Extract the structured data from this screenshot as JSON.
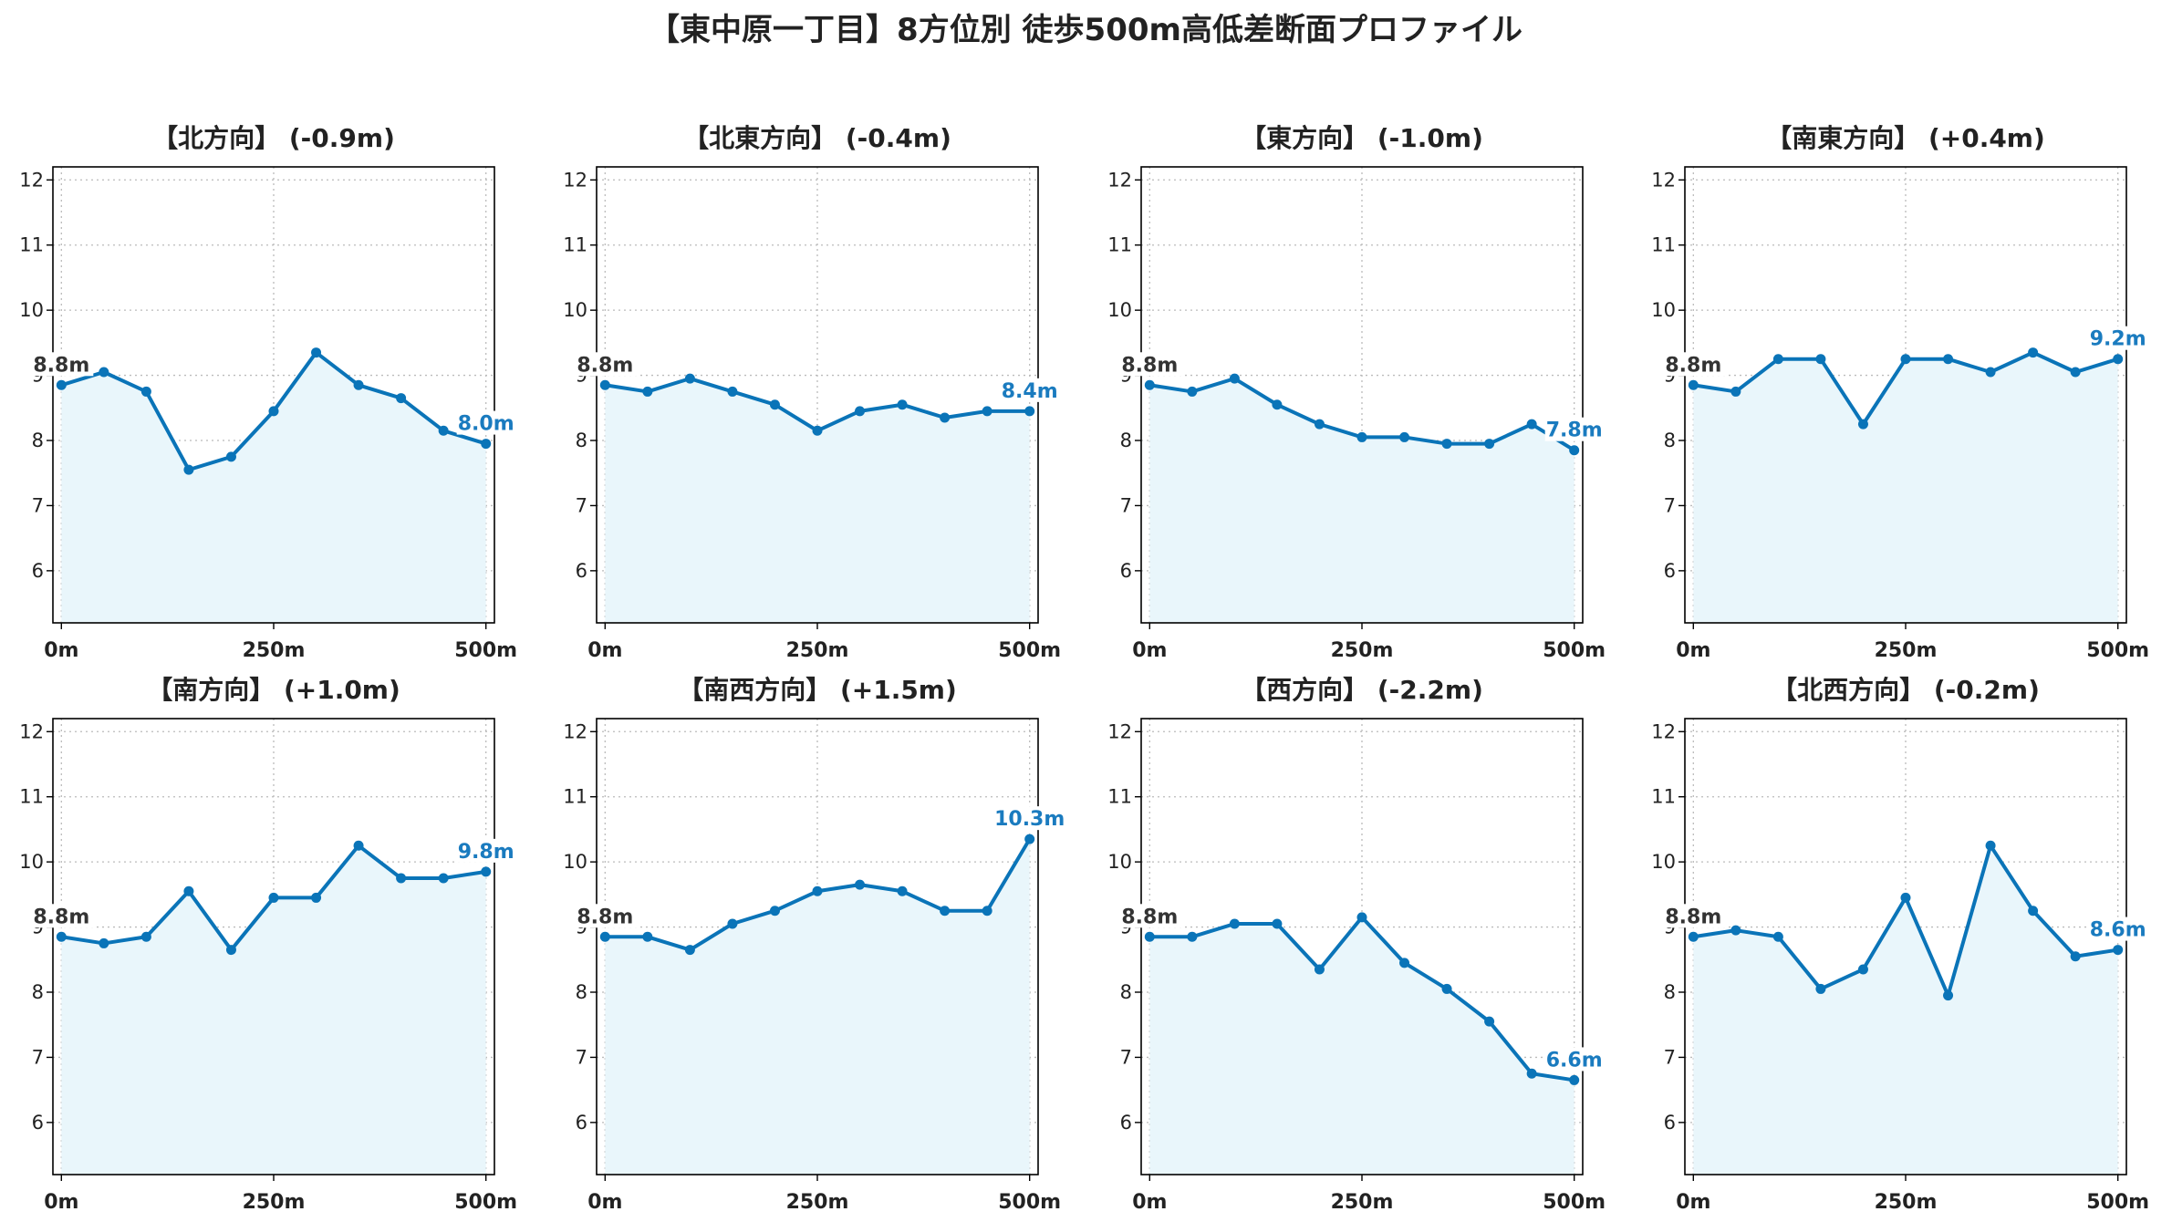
{
  "colors": {
    "line": "#0a74b8",
    "fill": "#e9f6fb",
    "end_label": "#1a7bbf",
    "start_label": "#333333"
  },
  "chart_data": {
    "title": "【東中原一丁目】8方位別 徒歩500m高低差断面プロファイル",
    "type": "line",
    "grid": true,
    "ylim": [
      5.2,
      12.2
    ],
    "xlim": [
      -10,
      510
    ],
    "yticks": [
      6,
      7,
      8,
      9,
      10,
      11,
      12
    ],
    "xticks": [
      0,
      250,
      500
    ],
    "xtick_labels": [
      "0m",
      "250m",
      "500m"
    ],
    "x": [
      0,
      50,
      100,
      150,
      200,
      250,
      300,
      350,
      400,
      450,
      500
    ],
    "panels": [
      {
        "title": "【北方向】 (-0.9m)",
        "values": [
          8.85,
          9.05,
          8.75,
          7.55,
          7.75,
          8.45,
          9.35,
          8.85,
          8.65,
          8.15,
          7.95
        ],
        "start_label": "8.8m",
        "end_label": "8.0m"
      },
      {
        "title": "【北東方向】 (-0.4m)",
        "values": [
          8.85,
          8.75,
          8.95,
          8.75,
          8.55,
          8.15,
          8.45,
          8.55,
          8.35,
          8.45,
          8.45
        ],
        "start_label": "8.8m",
        "end_label": "8.4m"
      },
      {
        "title": "【東方向】 (-1.0m)",
        "values": [
          8.85,
          8.75,
          8.95,
          8.55,
          8.25,
          8.05,
          8.05,
          7.95,
          7.95,
          8.25,
          7.85
        ],
        "start_label": "8.8m",
        "end_label": "7.8m"
      },
      {
        "title": "【南東方向】 (+0.4m)",
        "values": [
          8.85,
          8.75,
          9.25,
          9.25,
          8.25,
          9.25,
          9.25,
          9.05,
          9.35,
          9.05,
          9.25
        ],
        "start_label": "8.8m",
        "end_label": "9.2m"
      },
      {
        "title": "【南方向】 (+1.0m)",
        "values": [
          8.85,
          8.75,
          8.85,
          9.55,
          8.65,
          9.45,
          9.45,
          10.25,
          9.75,
          9.75,
          9.85
        ],
        "start_label": "8.8m",
        "end_label": "9.8m"
      },
      {
        "title": "【南西方向】 (+1.5m)",
        "values": [
          8.85,
          8.85,
          8.65,
          9.05,
          9.25,
          9.55,
          9.65,
          9.55,
          9.25,
          9.25,
          10.35
        ],
        "start_label": "8.8m",
        "end_label": "10.3m"
      },
      {
        "title": "【西方向】 (-2.2m)",
        "values": [
          8.85,
          8.85,
          9.05,
          9.05,
          8.35,
          9.15,
          8.45,
          8.05,
          7.55,
          6.75,
          6.65
        ],
        "start_label": "8.8m",
        "end_label": "6.6m"
      },
      {
        "title": "【北西方向】 (-0.2m)",
        "values": [
          8.85,
          8.95,
          8.85,
          8.05,
          8.35,
          9.45,
          7.95,
          10.25,
          9.25,
          8.55,
          8.65
        ],
        "start_label": "8.8m",
        "end_label": "8.6m"
      }
    ]
  }
}
